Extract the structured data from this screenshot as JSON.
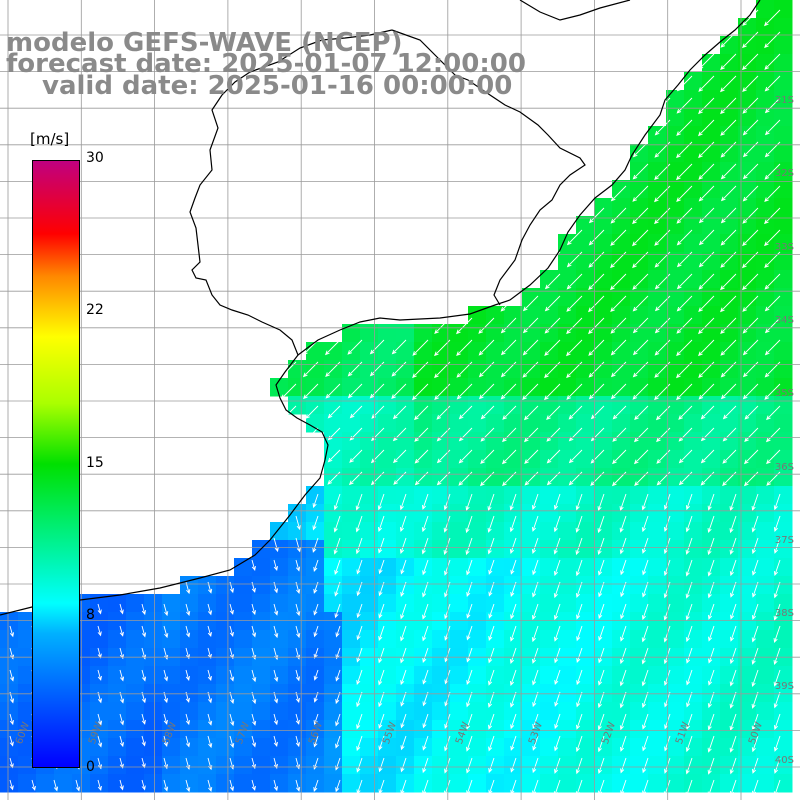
{
  "title": {
    "model": "modelo GEFS-WAVE (NCEP)",
    "forecast": "forecast date: 2025-01-07 12:00:00",
    "valid": "valid date: 2025-01-16 00:00:00"
  },
  "colorbar": {
    "units": "[m/s]",
    "ticks": [
      "30",
      "22",
      "15",
      "8",
      "0"
    ],
    "min": 0,
    "max": 30
  },
  "grid": {
    "lat_labels": [
      "31S",
      "32S",
      "33S",
      "34S",
      "35S",
      "36S",
      "37S",
      "38S",
      "39S",
      "40S"
    ],
    "lon_labels": [
      "60W",
      "59W",
      "58W",
      "57W",
      "56W",
      "55W",
      "54W",
      "53W",
      "52W",
      "51W",
      "50W"
    ]
  },
  "colors": {
    "land": "#ffffff",
    "coast": "#000000",
    "grid": "#9a9a9a",
    "arrow": "#ffffff",
    "title": "#8a8a8a"
  }
}
